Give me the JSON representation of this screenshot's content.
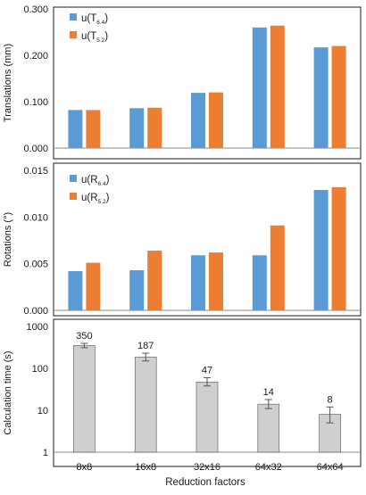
{
  "figure": {
    "xlabel": "Reduction factors",
    "categories": [
      "8x8",
      "16x8",
      "32x16",
      "64x32",
      "64x64"
    ]
  },
  "colors": {
    "series_a": "#5b9bd5",
    "series_b": "#ed7d31",
    "gray_bar": "#d0cece",
    "frame": "#1a1a1a",
    "grid": "#d9d9d9"
  },
  "chart_data": [
    {
      "type": "bar",
      "ylabel": "Translations (mm)",
      "ylim": [
        0,
        0.3
      ],
      "yticks": [
        "0.000",
        "0.100",
        "0.200",
        "0.300"
      ],
      "yticks_values": [
        0,
        0.1,
        0.2,
        0.3
      ],
      "grid": false,
      "legend": "top-left",
      "categories": [
        "8x8",
        "16x8",
        "32x16",
        "64x32",
        "64x64"
      ],
      "series": [
        {
          "name": "u(T",
          "sub": "6.4",
          "suffix": ")",
          "values": [
            0.082,
            0.086,
            0.119,
            0.26,
            0.217
          ]
        },
        {
          "name": "u(T",
          "sub": "5.2",
          "suffix": ")",
          "values": [
            0.082,
            0.087,
            0.12,
            0.264,
            0.22
          ]
        }
      ]
    },
    {
      "type": "bar",
      "ylabel": "Rotations (°)",
      "ylim": [
        0,
        0.015
      ],
      "yticks": [
        "0.000",
        "0.005",
        "0.010",
        "0.015"
      ],
      "yticks_values": [
        0,
        0.005,
        0.01,
        0.015
      ],
      "grid": false,
      "legend": "top-left",
      "categories": [
        "8x8",
        "16x8",
        "32x16",
        "64x32",
        "64x64"
      ],
      "series": [
        {
          "name": "u(R",
          "sub": "6.4",
          "suffix": ")",
          "values": [
            0.0042,
            0.0043,
            0.0059,
            0.0059,
            0.0129
          ]
        },
        {
          "name": "u(R",
          "sub": "5.2",
          "suffix": ")",
          "values": [
            0.0051,
            0.0064,
            0.0062,
            0.0091,
            0.0132
          ]
        }
      ]
    },
    {
      "type": "bar",
      "ylabel": "Calculation time (s)",
      "yscale": "log",
      "ylim": [
        1,
        1000
      ],
      "yticks": [
        "1",
        "10",
        "100",
        "1000"
      ],
      "yticks_values": [
        1,
        10,
        100,
        1000
      ],
      "grid": false,
      "categories": [
        "8x8",
        "16x8",
        "32x16",
        "64x32",
        "64x64"
      ],
      "values": [
        350,
        187,
        47,
        14,
        8
      ],
      "data_labels": [
        "350",
        "187",
        "47",
        "14",
        "8"
      ],
      "error_bars": [
        {
          "low": 310,
          "high": 395
        },
        {
          "low": 150,
          "high": 230
        },
        {
          "low": 38,
          "high": 60
        },
        {
          "low": 11,
          "high": 18
        },
        {
          "low": 5,
          "high": 12
        }
      ]
    }
  ]
}
